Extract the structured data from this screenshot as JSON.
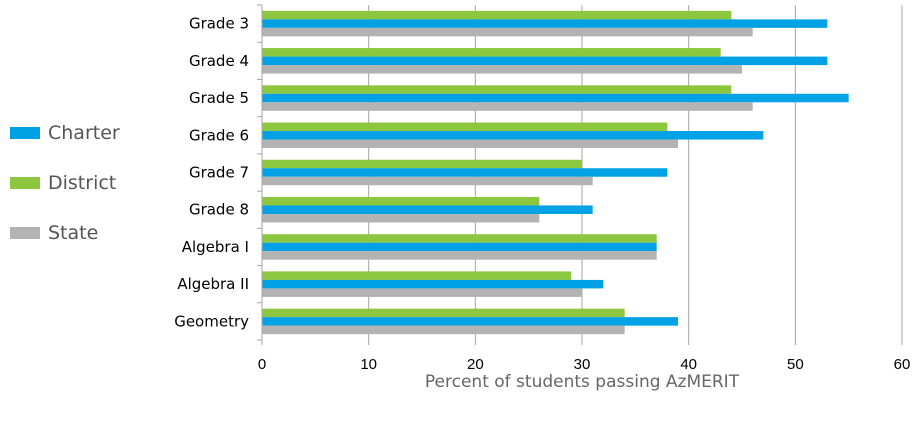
{
  "chart_data": {
    "type": "bar",
    "orientation": "horizontal",
    "categories": [
      "Grade 3",
      "Grade 4",
      "Grade 5",
      "Grade 6",
      "Grade 7",
      "Grade 8",
      "Algebra I",
      "Algebra II",
      "Geometry"
    ],
    "series": [
      {
        "name": "District",
        "color": "#8dc63f",
        "values": [
          44,
          43,
          44,
          38,
          30,
          26,
          37,
          29,
          34
        ]
      },
      {
        "name": "Charter",
        "color": "#00a2e5",
        "values": [
          53,
          53,
          55,
          47,
          38,
          31,
          37,
          32,
          39
        ]
      },
      {
        "name": "State",
        "color": "#b3b3b3",
        "values": [
          46,
          45,
          46,
          39,
          31,
          26,
          37,
          30,
          34
        ]
      }
    ],
    "xlabel": "Percent of students passing AzMERIT",
    "xlim": [
      0,
      60
    ],
    "xticks": [
      "0",
      "10",
      "20",
      "30",
      "40",
      "50",
      "60"
    ],
    "grid": "vertical",
    "legend_position": "left"
  },
  "legend": [
    {
      "label": "Charter",
      "color": "#00a2e5"
    },
    {
      "label": "District",
      "color": "#8dc63f"
    },
    {
      "label": "State",
      "color": "#b3b3b3"
    }
  ]
}
